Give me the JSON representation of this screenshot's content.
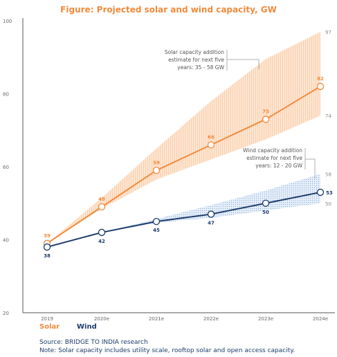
{
  "chart_data": {
    "type": "line",
    "title": "Figure: Projected solar and wind capacity, GW",
    "xlabel": "",
    "ylabel": "",
    "categories": [
      "2019",
      "2020e",
      "2021e",
      "2022e",
      "2023e",
      "2024e"
    ],
    "ylim": [
      20,
      100
    ],
    "yticks": [
      "20",
      "40",
      "60",
      "80",
      "100"
    ],
    "series": [
      {
        "name": "Solar",
        "color": "#f28a3c",
        "values": [
          39,
          49,
          59,
          66,
          73,
          82
        ],
        "labels": [
          "39",
          "49",
          "59",
          "66",
          "73",
          "82"
        ],
        "band": {
          "low": [
            39,
            48.5,
            56.5,
            62,
            67.5,
            74
          ],
          "high": [
            39,
            51.5,
            65,
            78,
            89.5,
            97
          ],
          "low_label": "74",
          "high_label": "97"
        }
      },
      {
        "name": "Wind",
        "color": "#1b3a6b",
        "values": [
          38,
          42,
          45,
          47,
          50,
          53
        ],
        "labels": [
          "38",
          "42",
          "45",
          "47",
          "50",
          "53"
        ],
        "band": {
          "low": [
            38,
            42,
            44.6,
            46,
            48,
            50
          ],
          "high": [
            38,
            42,
            45.7,
            49.5,
            53.5,
            58
          ],
          "low_label": "50",
          "high_label": "58"
        }
      }
    ],
    "annotations": {
      "solar": [
        "Solar capacity addition",
        "estimate for next five",
        "years: 35 - 58 GW"
      ],
      "wind": [
        "Wind capacity addition",
        "estimate for next five",
        "years: 12 - 20 GW"
      ]
    },
    "grid": false,
    "legend_position": "bottom-left"
  },
  "footer": {
    "source": "Source: BRIDGE TO INDIA research",
    "note": "Note: Solar capacity includes utility scale, rooftop solar and open access capacity."
  }
}
